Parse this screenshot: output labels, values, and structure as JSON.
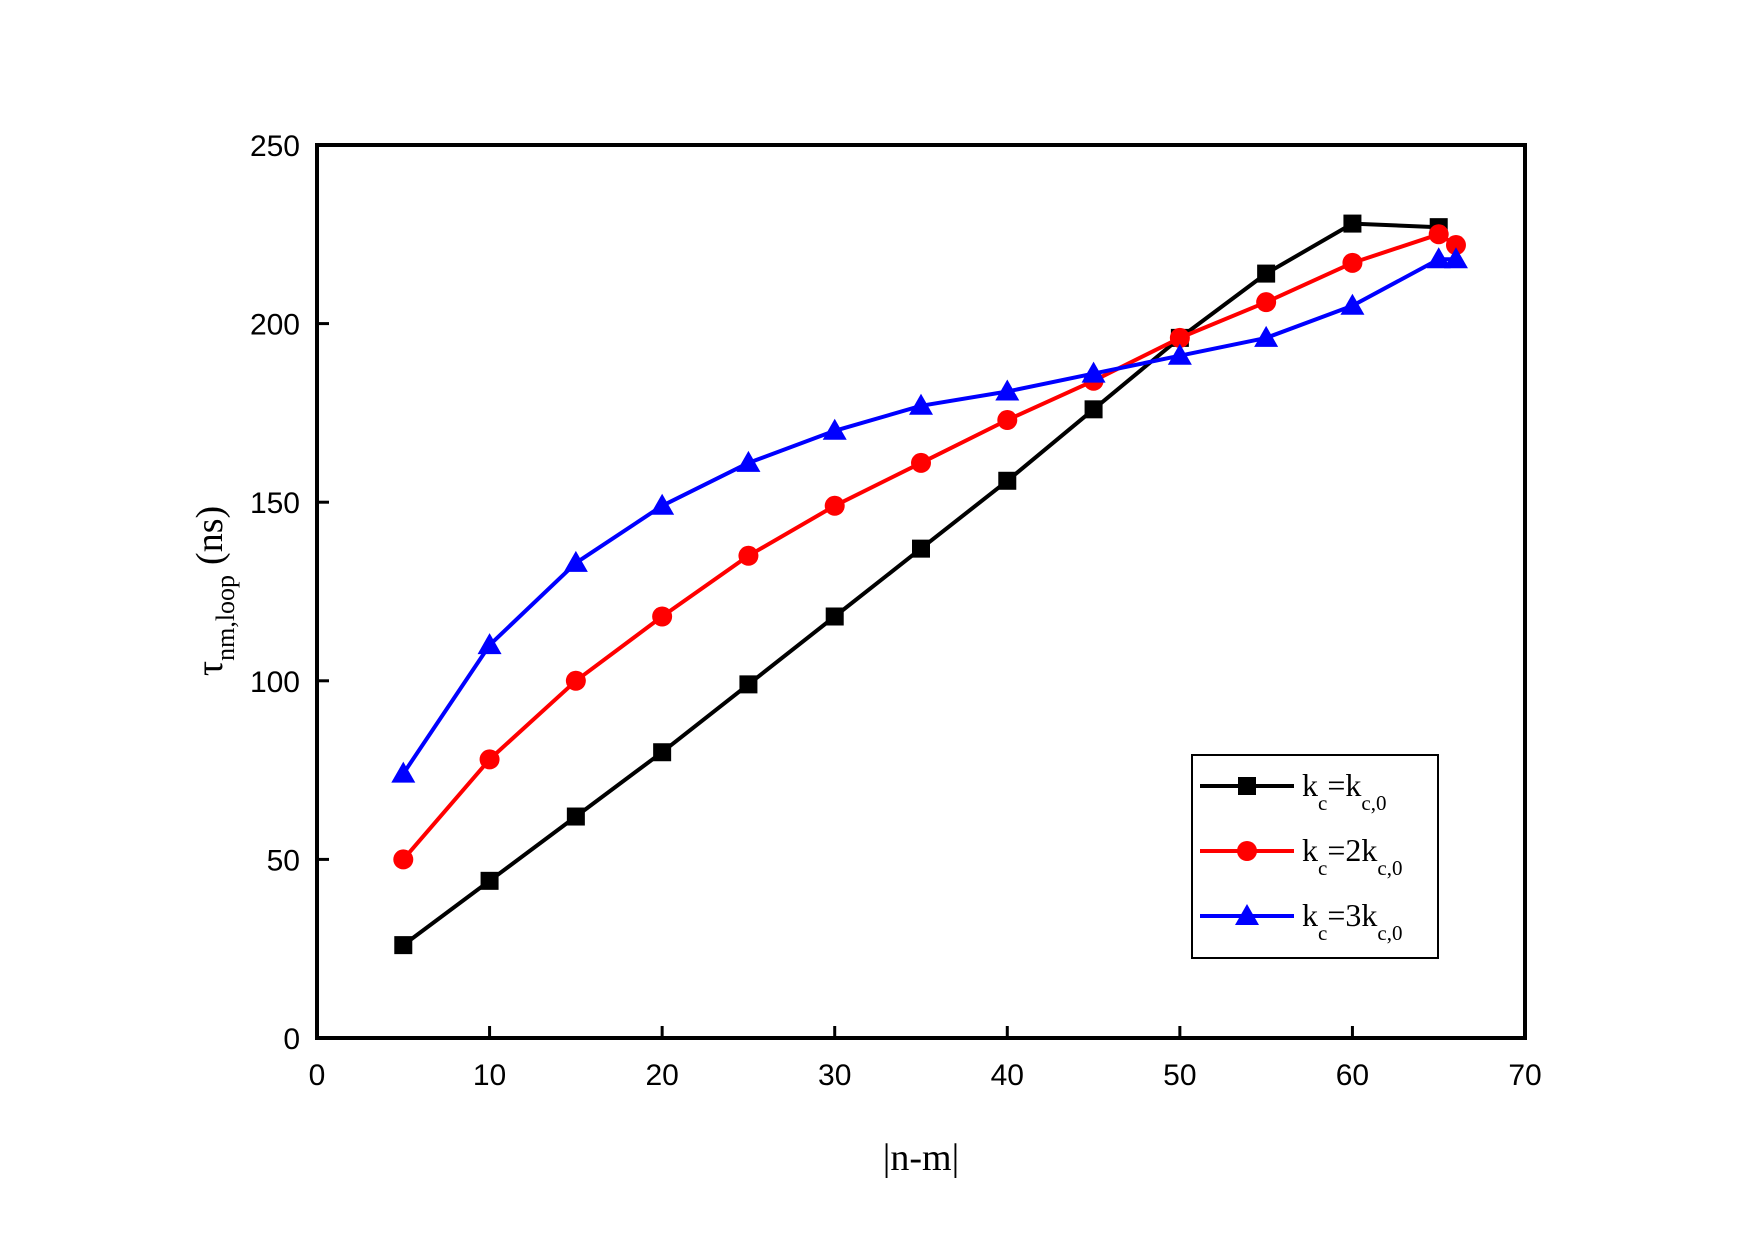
{
  "chart_data": {
    "type": "line",
    "xlabel": "|n-m|",
    "ylabel": {
      "symbol": "τ",
      "subscript": "nm,loop",
      "unit": "(ns)"
    },
    "xlim": [
      0,
      70
    ],
    "ylim": [
      0,
      250
    ],
    "xticks": [
      0,
      10,
      20,
      30,
      40,
      50,
      60,
      70
    ],
    "yticks": [
      0,
      50,
      100,
      150,
      200,
      250
    ],
    "grid": false,
    "legend_position": "bottom-right",
    "series": [
      {
        "name": "k_c=k_c,0",
        "legend": {
          "base": "k",
          "sub1": "c",
          "mid": "=k",
          "sub2": "c,0"
        },
        "color": "#000000",
        "marker": "square",
        "x": [
          5,
          10,
          15,
          20,
          25,
          30,
          35,
          40,
          45,
          50,
          55,
          60,
          65
        ],
        "y": [
          26,
          44,
          62,
          80,
          99,
          118,
          137,
          156,
          176,
          196,
          214,
          228,
          227
        ]
      },
      {
        "name": "k_c=2k_c,0",
        "legend": {
          "base": "k",
          "sub1": "c",
          "mid": "=2k",
          "sub2": "c,0"
        },
        "color": "#ff0000",
        "marker": "circle",
        "x": [
          5,
          10,
          15,
          20,
          25,
          30,
          35,
          40,
          45,
          50,
          55,
          60,
          65,
          66
        ],
        "y": [
          50,
          78,
          100,
          118,
          135,
          149,
          161,
          173,
          184,
          196,
          206,
          217,
          225,
          222
        ]
      },
      {
        "name": "k_c=3k_c,0",
        "legend": {
          "base": "k",
          "sub1": "c",
          "mid": "=3k",
          "sub2": "c,0"
        },
        "color": "#0000ff",
        "marker": "triangle",
        "x": [
          5,
          10,
          15,
          20,
          25,
          30,
          35,
          40,
          45,
          50,
          55,
          60,
          65,
          66
        ],
        "y": [
          74,
          110,
          133,
          149,
          161,
          170,
          177,
          181,
          186,
          191,
          196,
          205,
          218,
          218
        ]
      }
    ]
  }
}
